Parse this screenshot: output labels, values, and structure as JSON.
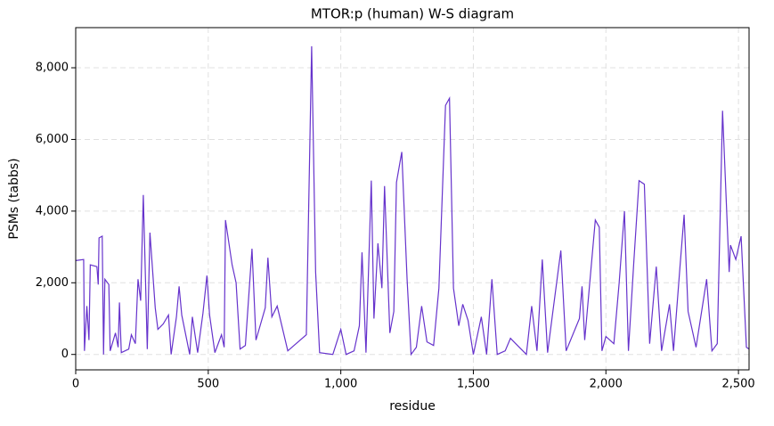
{
  "chart_data": {
    "type": "line",
    "title": "MTOR:p (human) W-S diagram",
    "x_label": "residue",
    "y_label": "PSMs (tabbs)",
    "x": [
      0,
      30,
      33,
      42,
      50,
      55,
      80,
      85,
      88,
      100,
      105,
      110,
      125,
      130,
      150,
      160,
      165,
      172,
      200,
      210,
      225,
      235,
      245,
      255,
      270,
      280,
      300,
      310,
      330,
      350,
      360,
      380,
      390,
      400,
      430,
      440,
      460,
      480,
      495,
      505,
      525,
      540,
      550,
      560,
      565,
      590,
      605,
      620,
      640,
      665,
      680,
      715,
      725,
      740,
      760,
      800,
      870,
      890,
      905,
      920,
      970,
      1000,
      1020,
      1050,
      1070,
      1080,
      1095,
      1115,
      1125,
      1140,
      1155,
      1165,
      1185,
      1200,
      1210,
      1230,
      1250,
      1265,
      1285,
      1305,
      1325,
      1350,
      1370,
      1395,
      1410,
      1425,
      1445,
      1460,
      1480,
      1500,
      1530,
      1550,
      1570,
      1590,
      1620,
      1640,
      1660,
      1700,
      1720,
      1740,
      1760,
      1780,
      1800,
      1830,
      1850,
      1900,
      1910,
      1920,
      1960,
      1975,
      1985,
      2000,
      2030,
      2050,
      2070,
      2085,
      2105,
      2125,
      2145,
      2165,
      2190,
      2210,
      2240,
      2255,
      2280,
      2295,
      2310,
      2340,
      2380,
      2400,
      2420,
      2440,
      2465,
      2470,
      2490,
      2510,
      2530,
      2540
    ],
    "series": [
      {
        "name": "MTOR:p",
        "color": "#6633cc",
        "values": [
          2620,
          2650,
          100,
          1350,
          400,
          2500,
          2450,
          1950,
          3250,
          3300,
          0,
          2100,
          1950,
          100,
          600,
          200,
          1450,
          50,
          150,
          550,
          300,
          2100,
          1500,
          4450,
          150,
          3400,
          1300,
          700,
          850,
          1100,
          0,
          1050,
          1900,
          1100,
          0,
          1050,
          50,
          1150,
          2200,
          1100,
          50,
          350,
          550,
          200,
          3750,
          2500,
          2000,
          150,
          250,
          2950,
          400,
          1300,
          2700,
          1050,
          1350,
          100,
          550,
          8600,
          2300,
          50,
          0,
          700,
          0,
          100,
          800,
          2850,
          50,
          4850,
          1000,
          3100,
          1850,
          4700,
          600,
          1200,
          4800,
          5650,
          2100,
          0,
          200,
          1350,
          350,
          250,
          1850,
          6950,
          7150,
          1850,
          800,
          1400,
          950,
          0,
          1050,
          0,
          2100,
          0,
          100,
          450,
          300,
          0,
          1350,
          100,
          2650,
          50,
          1200,
          2900,
          100,
          1000,
          1900,
          400,
          3750,
          3550,
          100,
          500,
          300,
          2000,
          4000,
          100,
          2550,
          4850,
          4750,
          300,
          2450,
          100,
          1400,
          100,
          2500,
          3900,
          1200,
          200,
          2100,
          100,
          300,
          6800,
          2300,
          3050,
          2650,
          3300,
          200,
          150
        ]
      }
    ],
    "xlim": [
      0,
      2540
    ],
    "ylim": [
      -430,
      9120
    ],
    "xticks": [
      0,
      500,
      {
        "value": 1000,
        "label": "1,000"
      },
      {
        "value": 1500,
        "label": "1,500"
      },
      {
        "value": 2000,
        "label": "2,000"
      },
      {
        "value": 2500,
        "label": "2,500"
      }
    ],
    "yticks": [
      0,
      {
        "value": 2000,
        "label": "2,000"
      },
      {
        "value": 4000,
        "label": "4,000"
      },
      {
        "value": 6000,
        "label": "6,000"
      },
      {
        "value": 8000,
        "label": "8,000"
      }
    ],
    "grid": true
  }
}
